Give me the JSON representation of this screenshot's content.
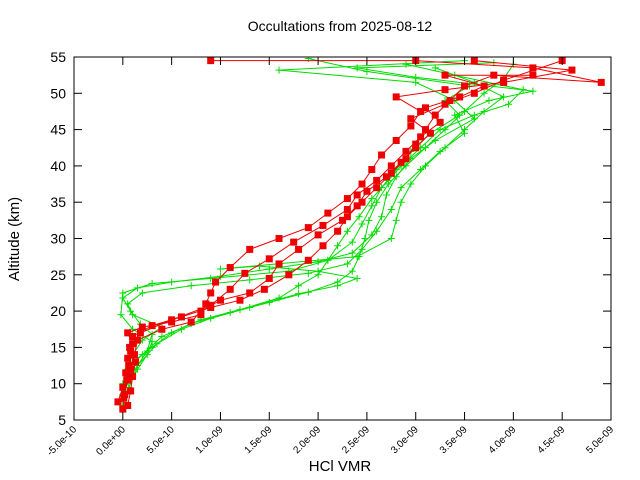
{
  "chart_data": {
    "type": "line",
    "title": "Occultations from 2025-08-12",
    "xlabel": "HCl VMR",
    "ylabel": "Altitude (km)",
    "xlim": [
      -5e-10,
      5e-09
    ],
    "ylim": [
      5,
      55
    ],
    "x_ticks": [
      -5e-10,
      0,
      5e-10,
      1e-09,
      1.5e-09,
      2e-09,
      2.5e-09,
      3e-09,
      3.5e-09,
      4e-09,
      4.5e-09,
      5e-09
    ],
    "x_tick_labels": [
      "-5.0e-10",
      "0.0e+00",
      "5.0e-10",
      "1.0e-09",
      "1.5e-09",
      "2.0e-09",
      "2.5e-09",
      "3.0e-09",
      "3.5e-09",
      "4.0e-09",
      "4.5e-09",
      "5.0e-09"
    ],
    "y_ticks": [
      5,
      10,
      15,
      20,
      25,
      30,
      35,
      40,
      45,
      50,
      55
    ],
    "y_tick_labels": [
      "5",
      "10",
      "15",
      "20",
      "25",
      "30",
      "35",
      "40",
      "45",
      "50",
      "55"
    ],
    "grid": false,
    "legend": "none",
    "series": [
      {
        "name": "profile-a",
        "color": "#00dd00",
        "marker": "plus",
        "points": [
          [
            0.0,
            6.8
          ],
          [
            2e-11,
            9
          ],
          [
            5e-11,
            11
          ],
          [
            1e-10,
            13
          ],
          [
            3e-10,
            15
          ],
          [
            5e-10,
            17
          ],
          [
            7e-10,
            18.3
          ],
          [
            1.1e-09,
            19.8
          ],
          [
            1.5e-09,
            21.2
          ],
          [
            1.9e-09,
            22.6
          ],
          [
            2.2e-09,
            24
          ],
          [
            2.35e-09,
            25.5
          ],
          [
            2.42e-09,
            27.5
          ],
          [
            2.48e-09,
            30
          ],
          [
            2.52e-09,
            32.5
          ],
          [
            2.6e-09,
            35
          ],
          [
            2.72e-09,
            37.5
          ],
          [
            2.9e-09,
            40
          ],
          [
            3.1e-09,
            42.5
          ],
          [
            3.3e-09,
            45
          ],
          [
            3.5e-09,
            47.5
          ],
          [
            3.7e-09,
            50
          ],
          [
            3.9e-09,
            52
          ],
          [
            4e-09,
            54
          ]
        ]
      },
      {
        "name": "profile-b",
        "color": "#00dd00",
        "marker": "plus",
        "points": [
          [
            -2e-11,
            7.5
          ],
          [
            0.0,
            10
          ],
          [
            5e-11,
            12
          ],
          [
            2e-10,
            14
          ],
          [
            4e-10,
            16.5
          ],
          [
            8e-10,
            18.8
          ],
          [
            1.2e-09,
            20.2
          ],
          [
            1.6e-09,
            21.8
          ],
          [
            1.8e-09,
            23.5
          ],
          [
            2e-09,
            25
          ],
          [
            2.1e-09,
            27
          ],
          [
            2.2e-09,
            29
          ],
          [
            2.3e-09,
            31
          ],
          [
            2.42e-09,
            33
          ],
          [
            2.55e-09,
            35.5
          ],
          [
            2.72e-09,
            38
          ],
          [
            2.85e-09,
            40
          ],
          [
            3.05e-09,
            42.5
          ],
          [
            3.25e-09,
            45
          ],
          [
            3.6e-09,
            47
          ],
          [
            3.95e-09,
            48.5
          ],
          [
            4.1e-09,
            50.5
          ],
          [
            3.4e-09,
            52.5
          ],
          [
            2.9e-09,
            54
          ]
        ]
      },
      {
        "name": "profile-c",
        "color": "#00dd00",
        "marker": "plus",
        "points": [
          [
            0.0,
            8.5
          ],
          [
            1e-10,
            11.5
          ],
          [
            2.5e-10,
            14.5
          ],
          [
            3e-10,
            16.8
          ],
          [
            1.8e-10,
            18.2
          ],
          [
            8e-11,
            20
          ],
          [
            0.0,
            21.8
          ],
          [
            1.5e-10,
            23.2
          ],
          [
            5e-10,
            24
          ],
          [
            1e-09,
            24.8
          ],
          [
            1.5e-09,
            25.8
          ],
          [
            2e-09,
            26.8
          ],
          [
            2.35e-09,
            28
          ],
          [
            2.55e-09,
            30.5
          ],
          [
            2.65e-09,
            33
          ],
          [
            2.7e-09,
            36
          ],
          [
            2.8e-09,
            38.5
          ],
          [
            2.95e-09,
            41
          ],
          [
            3.2e-09,
            43.5
          ],
          [
            3.6e-09,
            46.5
          ],
          [
            3.4e-09,
            49
          ],
          [
            3e-09,
            51.5
          ],
          [
            1.6e-09,
            53.2
          ],
          [
            3.5e-09,
            54.5
          ]
        ]
      },
      {
        "name": "profile-d",
        "color": "#00dd00",
        "marker": "plus",
        "points": [
          [
            5e-11,
            9
          ],
          [
            1.5e-10,
            12.5
          ],
          [
            3.5e-10,
            15.5
          ],
          [
            6e-10,
            17.5
          ],
          [
            9e-10,
            19
          ],
          [
            1.3e-09,
            20.5
          ],
          [
            1.8e-09,
            22.4
          ],
          [
            2.2e-09,
            23.5
          ],
          [
            2.4e-09,
            24.5
          ],
          [
            2e-09,
            25.5
          ],
          [
            1.4e-09,
            26.2
          ],
          [
            1e-09,
            25.8
          ],
          [
            2.4e-09,
            27.5
          ],
          [
            2.75e-09,
            30
          ],
          [
            2.8e-09,
            32.5
          ],
          [
            2.85e-09,
            35
          ],
          [
            2.95e-09,
            37.5
          ],
          [
            3.1e-09,
            40
          ],
          [
            3.3e-09,
            42.5
          ],
          [
            3.5e-09,
            45
          ],
          [
            3.7e-09,
            47.5
          ],
          [
            3.9e-09,
            49.5
          ],
          [
            3.6e-09,
            51.5
          ],
          [
            3.2e-09,
            53.5
          ]
        ]
      },
      {
        "name": "profile-e",
        "color": "#00dd00",
        "marker": "plus",
        "points": [
          [
            1e-11,
            10
          ],
          [
            8e-11,
            13.5
          ],
          [
            2e-10,
            16
          ],
          [
            4e-10,
            17.8
          ],
          [
            1e-10,
            19.5
          ],
          [
            5e-11,
            21
          ],
          [
            2e-10,
            22.5
          ],
          [
            7e-10,
            23.5
          ],
          [
            1.3e-09,
            24.3
          ],
          [
            1.9e-09,
            25.2
          ],
          [
            2.3e-09,
            26.5
          ],
          [
            2.45e-09,
            28.5
          ],
          [
            2.6e-09,
            31
          ],
          [
            2.75e-09,
            34
          ],
          [
            2.85e-09,
            37
          ],
          [
            3.05e-09,
            39.5
          ],
          [
            3.25e-09,
            42
          ],
          [
            3.5e-09,
            44.5
          ],
          [
            3.4e-09,
            47
          ],
          [
            3.75e-09,
            49
          ],
          [
            4.2e-09,
            50.3
          ],
          [
            3e-09,
            52.2
          ],
          [
            2.4e-09,
            53.5
          ],
          [
            3.8e-09,
            54.2
          ]
        ]
      },
      {
        "name": "profile-f",
        "color": "#00dd00",
        "marker": "plus",
        "points": [
          [
            0.0,
            7
          ],
          [
            6e-11,
            9.5
          ],
          [
            1.5e-10,
            12
          ],
          [
            2.5e-10,
            14
          ],
          [
            3e-10,
            15.8
          ],
          [
            1e-10,
            17.5
          ],
          [
            -2e-11,
            19.5
          ],
          [
            0.0,
            22.5
          ],
          [
            3e-10,
            23.8
          ],
          [
            9e-10,
            24.5
          ],
          [
            1.7e-09,
            25.5
          ],
          [
            2.1e-09,
            27
          ],
          [
            2.35e-09,
            29.5
          ],
          [
            2.45e-09,
            32
          ],
          [
            2.55e-09,
            34.5
          ],
          [
            2.65e-09,
            37
          ],
          [
            2.8e-09,
            39.5
          ],
          [
            2.95e-09,
            42
          ],
          [
            3.15e-09,
            44.5
          ],
          [
            3.45e-09,
            47
          ],
          [
            3.3e-09,
            49
          ],
          [
            3.55e-09,
            51
          ],
          [
            2.5e-09,
            53
          ],
          [
            1.9e-09,
            54.8
          ]
        ]
      },
      {
        "name": "profile-g",
        "color": "#ee0000",
        "marker": "square",
        "points": [
          [
            0.0,
            6.5
          ],
          [
            2e-11,
            8.5
          ],
          [
            4e-11,
            10.5
          ],
          [
            6e-11,
            12.5
          ],
          [
            8e-11,
            14.5
          ],
          [
            1e-10,
            16.5
          ],
          [
            3e-10,
            18
          ],
          [
            6e-10,
            19.2
          ],
          [
            9e-10,
            20.5
          ],
          [
            1.2e-09,
            21.5
          ],
          [
            1.45e-09,
            23
          ],
          [
            1.7e-09,
            25
          ],
          [
            1.9e-09,
            27
          ],
          [
            2.05e-09,
            29
          ],
          [
            2.2e-09,
            31
          ],
          [
            2.3e-09,
            33
          ],
          [
            2.45e-09,
            35
          ],
          [
            2.6e-09,
            37
          ],
          [
            2.75e-09,
            39
          ],
          [
            2.9e-09,
            41
          ],
          [
            3e-09,
            43
          ],
          [
            3.1e-09,
            45
          ],
          [
            3.2e-09,
            47
          ],
          [
            3.35e-09,
            49
          ],
          [
            3.5e-09,
            51
          ],
          [
            3.8e-09,
            52.5
          ],
          [
            4.9e-09,
            51.5
          ],
          [
            4.2e-09,
            53.5
          ],
          [
            3e-09,
            54.5
          ],
          [
            9e-10,
            54.5
          ]
        ]
      },
      {
        "name": "profile-h",
        "color": "#ee0000",
        "marker": "square",
        "points": [
          [
            -5e-11,
            7.5
          ],
          [
            0.0,
            9.5
          ],
          [
            3e-11,
            11.5
          ],
          [
            5e-11,
            13.5
          ],
          [
            1e-10,
            15.5
          ],
          [
            5e-11,
            17
          ],
          [
            2e-10,
            17.8
          ],
          [
            5e-10,
            18.5
          ],
          [
            8e-10,
            19.5
          ],
          [
            8.5e-10,
            21
          ],
          [
            9e-10,
            22.5
          ],
          [
            9.5e-10,
            24
          ],
          [
            1.1e-09,
            26
          ],
          [
            1.3e-09,
            28.5
          ],
          [
            1.6e-09,
            30
          ],
          [
            1.9e-09,
            31.5
          ],
          [
            2.1e-09,
            33.5
          ],
          [
            2.3e-09,
            35.5
          ],
          [
            2.45e-09,
            37.5
          ],
          [
            2.55e-09,
            39.5
          ],
          [
            2.65e-09,
            41.5
          ],
          [
            2.8e-09,
            43.5
          ],
          [
            2.95e-09,
            45.5
          ],
          [
            3.05e-09,
            47.5
          ],
          [
            2.8e-09,
            49.5
          ],
          [
            3.3e-09,
            50.5
          ],
          [
            3.9e-09,
            51.5
          ],
          [
            4.6e-09,
            53.2
          ],
          [
            3.6e-09,
            54.5
          ]
        ]
      },
      {
        "name": "profile-i",
        "color": "#ee0000",
        "marker": "square",
        "points": [
          [
            1e-11,
            8
          ],
          [
            5e-11,
            10.5
          ],
          [
            8e-11,
            12
          ],
          [
            1.2e-10,
            14
          ],
          [
            1.5e-10,
            16
          ],
          [
            4e-10,
            17.5
          ],
          [
            7e-10,
            18.5
          ],
          [
            8e-10,
            20
          ],
          [
            1e-09,
            21.5
          ],
          [
            1.3e-09,
            22.5
          ],
          [
            1.5e-09,
            24.5
          ],
          [
            1.6e-09,
            26.5
          ],
          [
            1.8e-09,
            28.5
          ],
          [
            2e-09,
            30.5
          ],
          [
            2.25e-09,
            32.5
          ],
          [
            2.4e-09,
            34.5
          ],
          [
            2.5e-09,
            36.5
          ],
          [
            2.7e-09,
            38.5
          ],
          [
            2.85e-09,
            40.5
          ],
          [
            3e-09,
            42.5
          ],
          [
            3.15e-09,
            44.5
          ],
          [
            2.95e-09,
            46.5
          ],
          [
            3.3e-09,
            48.5
          ],
          [
            3.6e-09,
            50
          ],
          [
            3.9e-09,
            51.8
          ],
          [
            4.5e-09,
            54.5
          ]
        ]
      },
      {
        "name": "profile-j",
        "color": "#ee0000",
        "marker": "square",
        "points": [
          [
            5e-11,
            7
          ],
          [
            8e-11,
            9
          ],
          [
            1e-10,
            11
          ],
          [
            1.3e-10,
            13
          ],
          [
            7e-11,
            15
          ],
          [
            1.8e-10,
            17
          ],
          [
            5e-10,
            18.8
          ],
          [
            9e-10,
            20.8
          ],
          [
            1.1e-09,
            23
          ],
          [
            1.25e-09,
            25.2
          ],
          [
            1.5e-09,
            27.2
          ],
          [
            1.75e-09,
            29.5
          ],
          [
            2.05e-09,
            31.8
          ],
          [
            2.3e-09,
            34
          ],
          [
            2.4e-09,
            36
          ],
          [
            2.6e-09,
            38
          ],
          [
            2.75e-09,
            40
          ],
          [
            2.9e-09,
            42
          ],
          [
            3.05e-09,
            44
          ],
          [
            3.25e-09,
            46
          ],
          [
            3.1e-09,
            48
          ],
          [
            3.45e-09,
            49.5
          ],
          [
            3.7e-09,
            51
          ],
          [
            3.3e-09,
            52.5
          ],
          [
            4.2e-09,
            52.5
          ]
        ]
      }
    ]
  }
}
